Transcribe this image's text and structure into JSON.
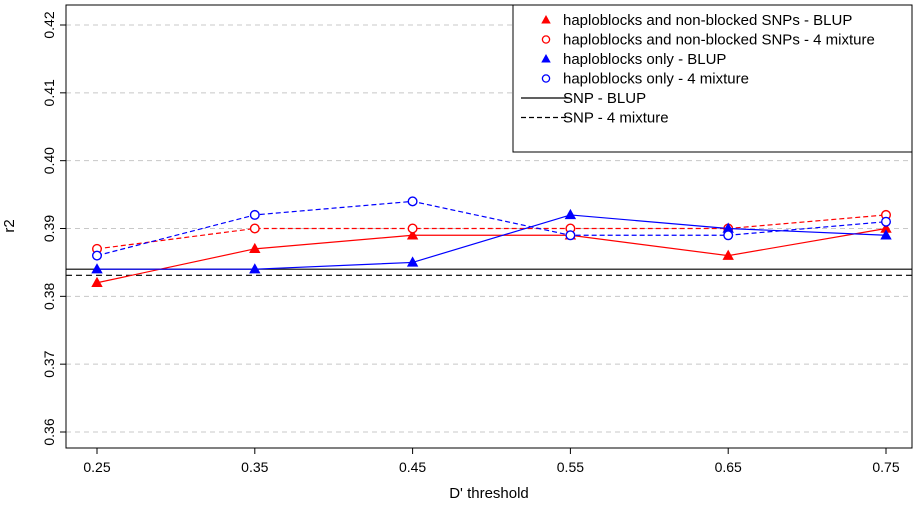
{
  "chart_data": {
    "type": "line",
    "title": "",
    "xlabel": "D' threshold",
    "ylabel": "r2",
    "x": [
      0.25,
      0.35,
      0.45,
      0.55,
      0.65,
      0.75
    ],
    "x_tick_labels": [
      "0.25",
      "0.35",
      "0.45",
      "0.55",
      "0.65",
      "0.75"
    ],
    "ylim": [
      0.3585,
      0.4215
    ],
    "y_ticks": [
      0.36,
      0.37,
      0.38,
      0.39,
      0.4,
      0.41,
      0.42
    ],
    "y_tick_labels": [
      "0.36",
      "0.37",
      "0.38",
      "0.39",
      "0.40",
      "0.41",
      "0.42"
    ],
    "grid": "horizontal dashed",
    "legend_position": "top-right",
    "series": [
      {
        "name": "haploblocks and non-blocked SNPs - BLUP",
        "color": "#ff0000",
        "marker": "filled-triangle",
        "line": "solid",
        "values": [
          0.382,
          0.387,
          0.389,
          0.389,
          0.386,
          0.39
        ]
      },
      {
        "name": "haploblocks and non-blocked SNPs - 4 mixture",
        "color": "#ff0000",
        "marker": "open-circle",
        "line": "dashed",
        "values": [
          0.387,
          0.39,
          0.39,
          0.39,
          0.39,
          0.392
        ]
      },
      {
        "name": "haploblocks only - BLUP",
        "color": "#0000ff",
        "marker": "filled-triangle",
        "line": "solid",
        "values": [
          0.384,
          0.384,
          0.385,
          0.392,
          0.39,
          0.389
        ]
      },
      {
        "name": "haploblocks only - 4 mixture",
        "color": "#0000ff",
        "marker": "open-circle",
        "line": "dashed",
        "values": [
          0.386,
          0.392,
          0.394,
          0.389,
          0.389,
          0.391
        ]
      }
    ],
    "reference_lines": [
      {
        "name": "SNP - BLUP",
        "color": "#000000",
        "line": "solid",
        "value": 0.384
      },
      {
        "name": "SNP - 4 mixture",
        "color": "#000000",
        "line": "dashed",
        "value": 0.3831
      }
    ]
  }
}
